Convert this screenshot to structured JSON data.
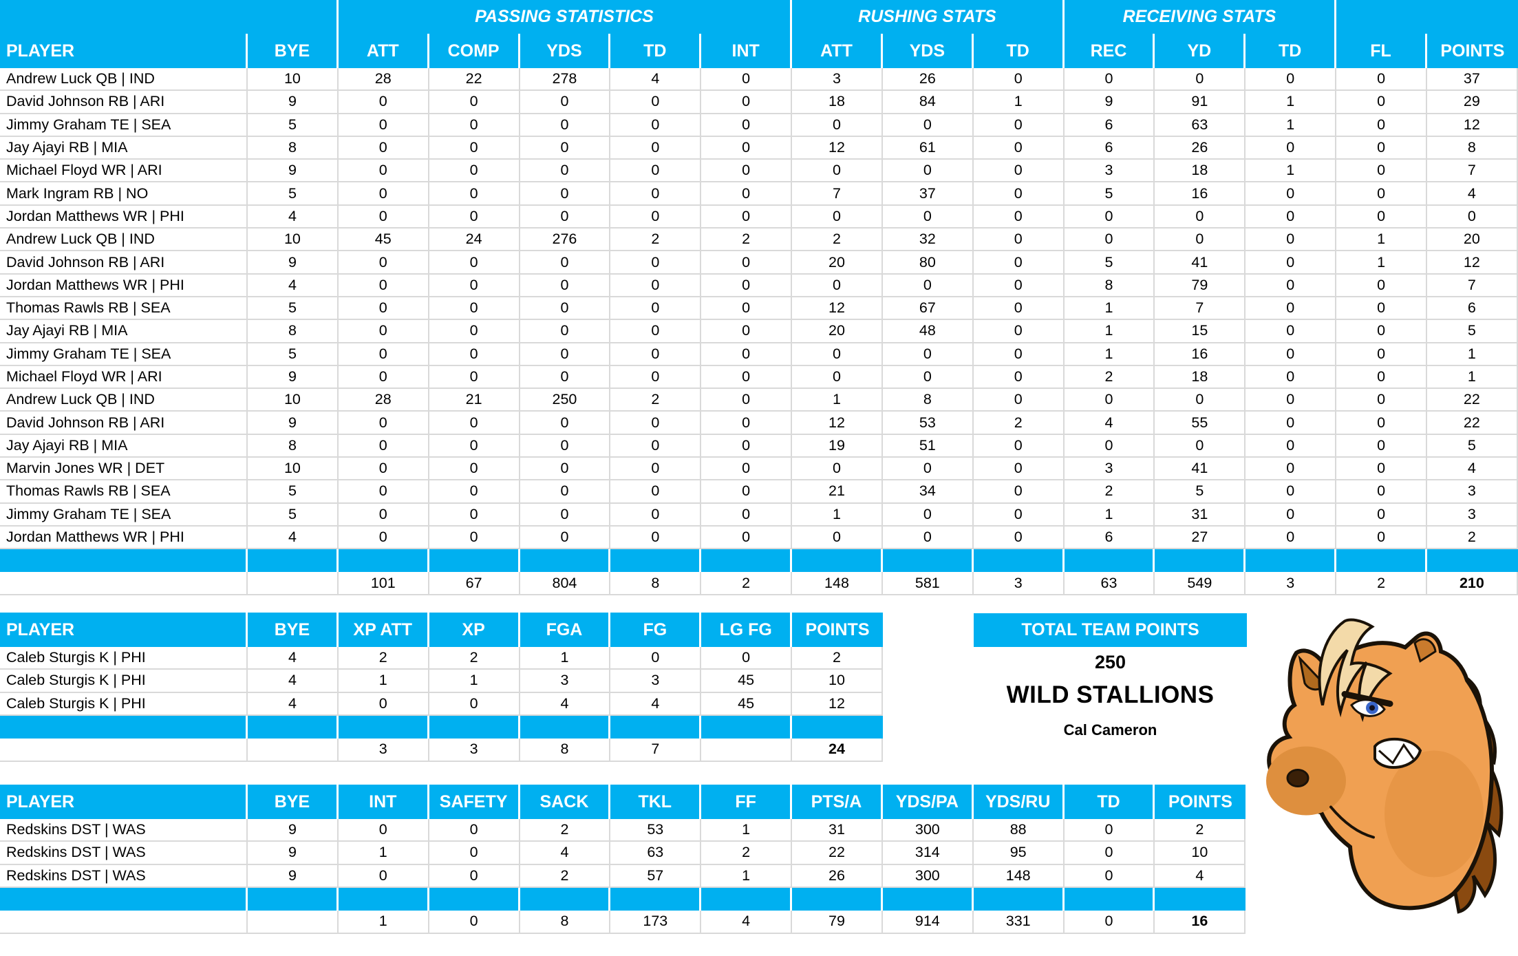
{
  "page": {
    "accent_color": "#00B0F0",
    "grid_color": "#D9D9D9"
  },
  "main_table": {
    "group_headers": [
      {
        "label": "",
        "span": 2
      },
      {
        "label": "PASSING STATISTICS",
        "span": 5
      },
      {
        "label": "RUSHING STATS",
        "span": 3
      },
      {
        "label": "RECEIVING STATS",
        "span": 3
      },
      {
        "label": "",
        "span": 2
      }
    ],
    "columns": [
      "PLAYER",
      "BYE",
      "ATT",
      "COMP",
      "YDS",
      "TD",
      "INT",
      "ATT",
      "YDS",
      "TD",
      "REC",
      "YD",
      "TD",
      "FL",
      "POINTS"
    ],
    "rows": [
      [
        "Andrew Luck QB | IND",
        10,
        28,
        22,
        278,
        4,
        0,
        3,
        26,
        0,
        0,
        0,
        0,
        0,
        37
      ],
      [
        "David Johnson RB | ARI",
        9,
        0,
        0,
        0,
        0,
        0,
        18,
        84,
        1,
        9,
        91,
        1,
        0,
        29
      ],
      [
        "Jimmy Graham TE | SEA",
        5,
        0,
        0,
        0,
        0,
        0,
        0,
        0,
        0,
        6,
        63,
        1,
        0,
        12
      ],
      [
        "Jay Ajayi RB | MIA",
        8,
        0,
        0,
        0,
        0,
        0,
        12,
        61,
        0,
        6,
        26,
        0,
        0,
        8
      ],
      [
        "Michael Floyd WR | ARI",
        9,
        0,
        0,
        0,
        0,
        0,
        0,
        0,
        0,
        3,
        18,
        1,
        0,
        7
      ],
      [
        "Mark Ingram RB | NO",
        5,
        0,
        0,
        0,
        0,
        0,
        7,
        37,
        0,
        5,
        16,
        0,
        0,
        4
      ],
      [
        "Jordan Matthews WR | PHI",
        4,
        0,
        0,
        0,
        0,
        0,
        0,
        0,
        0,
        0,
        0,
        0,
        0,
        0
      ],
      [
        "Andrew Luck QB | IND",
        10,
        45,
        24,
        276,
        2,
        2,
        2,
        32,
        0,
        0,
        0,
        0,
        1,
        20
      ],
      [
        "David Johnson RB | ARI",
        9,
        0,
        0,
        0,
        0,
        0,
        20,
        80,
        0,
        5,
        41,
        0,
        1,
        12
      ],
      [
        "Jordan Matthews WR | PHI",
        4,
        0,
        0,
        0,
        0,
        0,
        0,
        0,
        0,
        8,
        79,
        0,
        0,
        7
      ],
      [
        "Thomas Rawls RB | SEA",
        5,
        0,
        0,
        0,
        0,
        0,
        12,
        67,
        0,
        1,
        7,
        0,
        0,
        6
      ],
      [
        "Jay Ajayi RB | MIA",
        8,
        0,
        0,
        0,
        0,
        0,
        20,
        48,
        0,
        1,
        15,
        0,
        0,
        5
      ],
      [
        "Jimmy Graham TE | SEA",
        5,
        0,
        0,
        0,
        0,
        0,
        0,
        0,
        0,
        1,
        16,
        0,
        0,
        1
      ],
      [
        "Michael Floyd WR | ARI",
        9,
        0,
        0,
        0,
        0,
        0,
        0,
        0,
        0,
        2,
        18,
        0,
        0,
        1
      ],
      [
        "Andrew Luck QB | IND",
        10,
        28,
        21,
        250,
        2,
        0,
        1,
        8,
        0,
        0,
        0,
        0,
        0,
        22
      ],
      [
        "David Johnson RB | ARI",
        9,
        0,
        0,
        0,
        0,
        0,
        12,
        53,
        2,
        4,
        55,
        0,
        0,
        22
      ],
      [
        "Jay Ajayi RB | MIA",
        8,
        0,
        0,
        0,
        0,
        0,
        19,
        51,
        0,
        0,
        0,
        0,
        0,
        5
      ],
      [
        "Marvin Jones WR | DET",
        10,
        0,
        0,
        0,
        0,
        0,
        0,
        0,
        0,
        3,
        41,
        0,
        0,
        4
      ],
      [
        "Thomas Rawls RB | SEA",
        5,
        0,
        0,
        0,
        0,
        0,
        21,
        34,
        0,
        2,
        5,
        0,
        0,
        3
      ],
      [
        "Jimmy Graham TE | SEA",
        5,
        0,
        0,
        0,
        0,
        0,
        1,
        0,
        0,
        1,
        31,
        0,
        0,
        3
      ],
      [
        "Jordan Matthews WR | PHI",
        4,
        0,
        0,
        0,
        0,
        0,
        0,
        0,
        0,
        6,
        27,
        0,
        0,
        2
      ]
    ],
    "totals": [
      "",
      "",
      101,
      67,
      804,
      8,
      2,
      148,
      581,
      3,
      63,
      549,
      3,
      2,
      210
    ]
  },
  "kicker_table": {
    "columns": [
      "PLAYER",
      "BYE",
      "XP ATT",
      "XP",
      "FGA",
      "FG",
      "LG FG",
      "POINTS"
    ],
    "rows": [
      [
        "Caleb Sturgis K | PHI",
        4,
        2,
        2,
        1,
        0,
        0,
        2
      ],
      [
        "Caleb Sturgis K | PHI",
        4,
        1,
        1,
        3,
        3,
        45,
        10
      ],
      [
        "Caleb Sturgis K | PHI",
        4,
        0,
        0,
        4,
        4,
        45,
        12
      ]
    ],
    "totals": [
      "",
      "",
      3,
      3,
      8,
      7,
      "",
      24
    ]
  },
  "defense_table": {
    "columns": [
      "PLAYER",
      "BYE",
      "INT",
      "SAFETY",
      "SACK",
      "TKL",
      "FF",
      "PTS/A",
      "YDS/PA",
      "YDS/RU",
      "TD",
      "POINTS"
    ],
    "rows": [
      [
        "Redskins DST | WAS",
        9,
        0,
        0,
        2,
        53,
        1,
        31,
        300,
        88,
        0,
        2
      ],
      [
        "Redskins DST | WAS",
        9,
        1,
        0,
        4,
        63,
        2,
        22,
        314,
        95,
        0,
        10
      ],
      [
        "Redskins DST | WAS",
        9,
        0,
        0,
        2,
        57,
        1,
        26,
        300,
        148,
        0,
        4
      ]
    ],
    "totals": [
      "",
      "",
      1,
      0,
      8,
      173,
      4,
      79,
      914,
      331,
      0,
      16
    ]
  },
  "team_summary": {
    "header": "TOTAL TEAM POINTS",
    "total_points": "250",
    "team_name": "WILD STALLIONS",
    "owner": "Cal Cameron"
  },
  "mascot": {
    "icon": "angry-horse-head-icon"
  }
}
